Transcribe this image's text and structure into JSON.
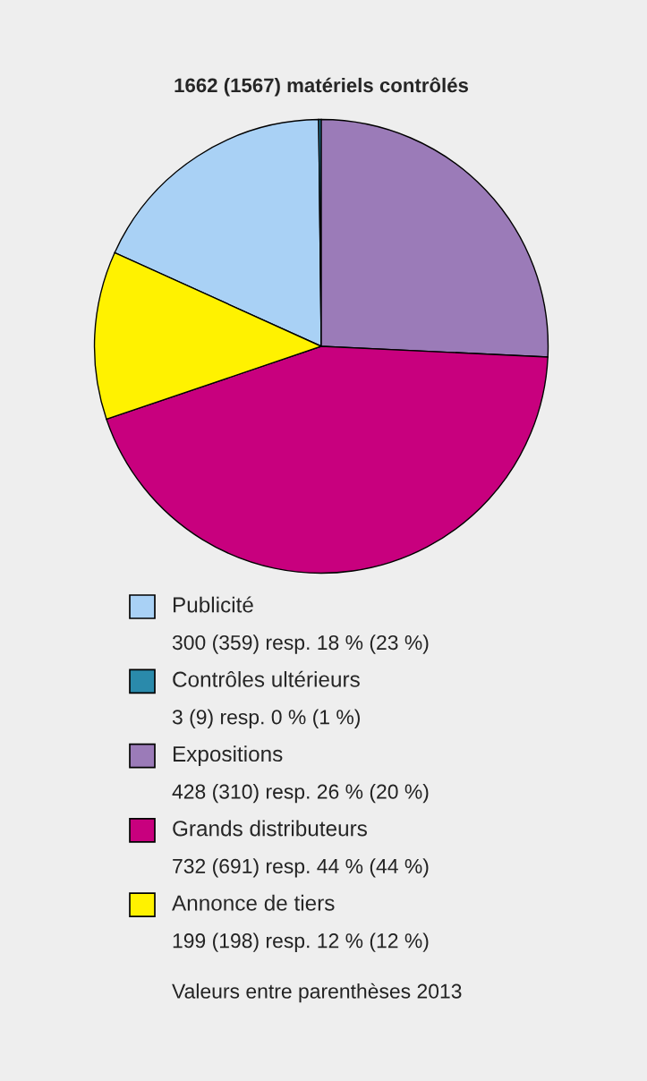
{
  "chart_data": {
    "type": "pie",
    "title": "1662 (1567) matériels contrôlés",
    "categories": [
      "Publicité",
      "Contrôles ultérieurs",
      "Expositions",
      "Grands distributeurs",
      "Annonce de tiers"
    ],
    "values": [
      300,
      3,
      428,
      732,
      199
    ],
    "colors": [
      "#a9d1f5",
      "#2a8aab",
      "#9b7bb8",
      "#c8007e",
      "#fff200"
    ],
    "value_labels": [
      "300 (359) resp. 18 % (23 %)",
      "3 (9) resp. 0 % (1 %)",
      "428 (310) resp. 26 % (20 %)",
      "732 (691) resp. 44 % (44 %)",
      "199 (198) resp. 12 % (12 %)"
    ],
    "legend": "bottom",
    "annotations": [
      "Valeurs entre parenthèses 2013"
    ]
  }
}
